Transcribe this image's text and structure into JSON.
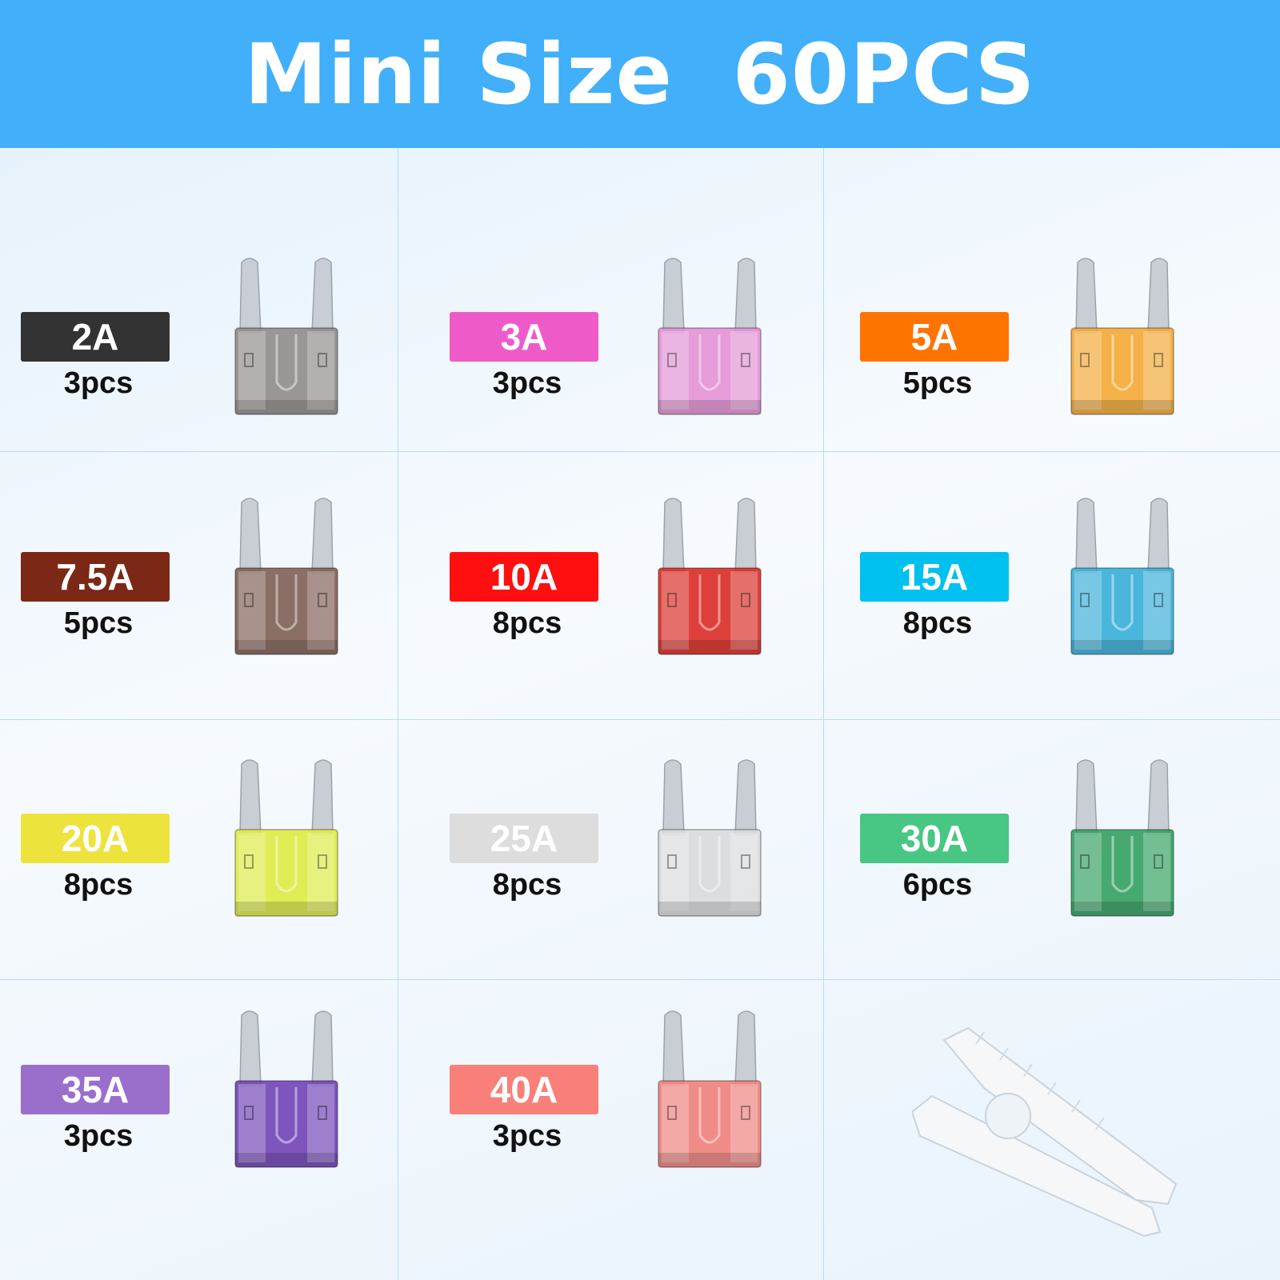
{
  "title": "Mini Size  60PCS",
  "fuses": [
    {
      "rating": "2A",
      "count": "3pcs",
      "label_color": "#333333",
      "body_color": "#8d8a88",
      "text_color": "#ffffff"
    },
    {
      "rating": "3A",
      "count": "3pcs",
      "label_color": "#ee5bc9",
      "body_color": "#e38ed3",
      "text_color": "#ffffff"
    },
    {
      "rating": "5A",
      "count": "5pcs",
      "label_color": "#ff7300",
      "body_color": "#f3a62f",
      "text_color": "#ffffff"
    },
    {
      "rating": "7.5A",
      "count": "5pcs",
      "label_color": "#7b2816",
      "body_color": "#7c5a50",
      "text_color": "#ffffff"
    },
    {
      "rating": "10A",
      "count": "8pcs",
      "label_color": "#ff0f0f",
      "body_color": "#d9261f",
      "text_color": "#ffffff"
    },
    {
      "rating": "15A",
      "count": "8pcs",
      "label_color": "#00c0ef",
      "body_color": "#33acd6",
      "text_color": "#ffffff"
    },
    {
      "rating": "20A",
      "count": "8pcs",
      "label_color": "#ede33d",
      "body_color": "#dcea3e",
      "text_color": "#ffffff"
    },
    {
      "rating": "25A",
      "count": "8pcs",
      "label_color": "#dddddd",
      "body_color": "#d7d9db",
      "text_color": "#ffffff"
    },
    {
      "rating": "30A",
      "count": "6pcs",
      "label_color": "#47c783",
      "body_color": "#2f9e5c",
      "text_color": "#ffffff"
    },
    {
      "rating": "35A",
      "count": "3pcs",
      "label_color": "#9a6fcb",
      "body_color": "#6d3fb3",
      "text_color": "#ffffff"
    },
    {
      "rating": "40A",
      "count": "3pcs",
      "label_color": "#f97f79",
      "body_color": "#ef7d77",
      "text_color": "#ffffff"
    }
  ],
  "accessory": {
    "icon": "fuse-puller-icon",
    "color": "#f4f6f8"
  }
}
